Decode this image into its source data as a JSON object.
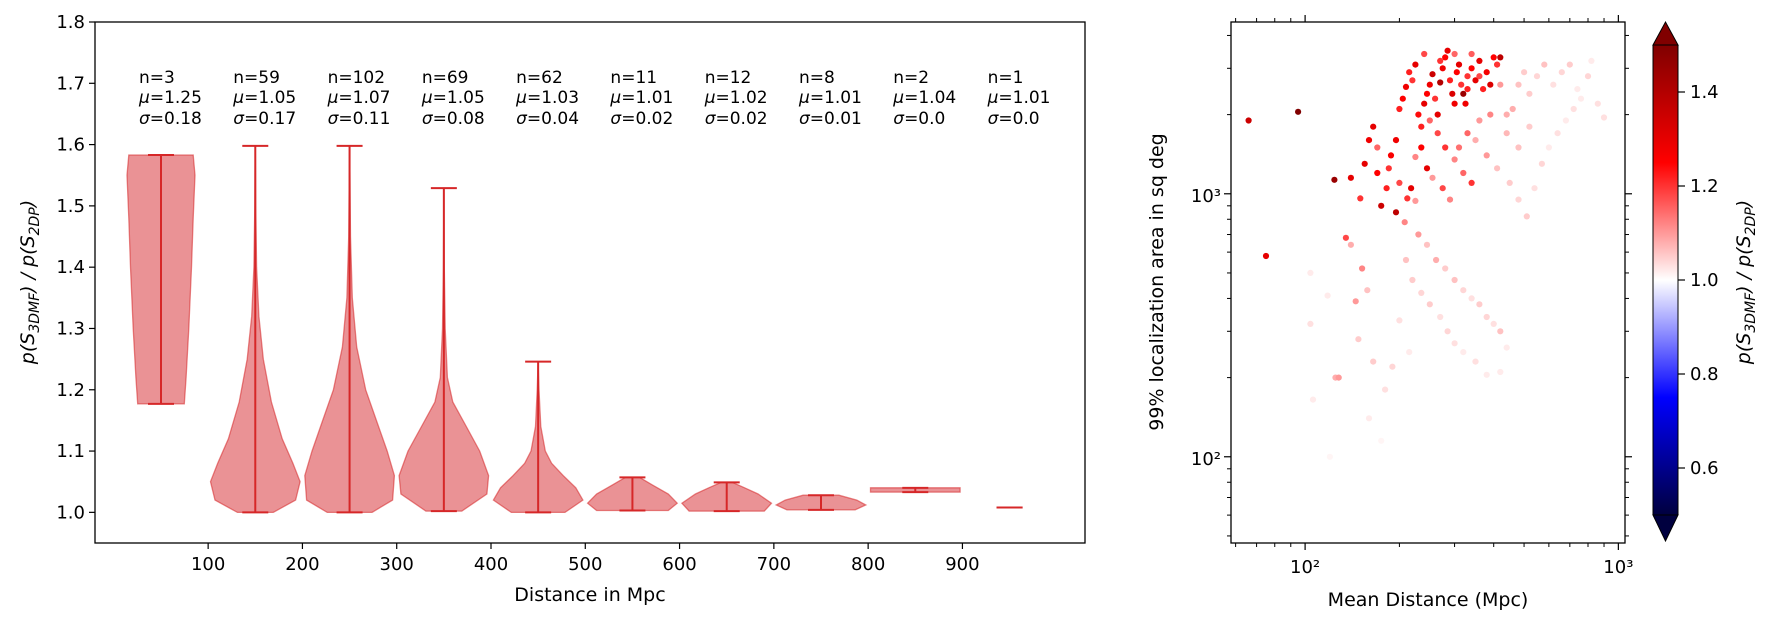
{
  "chart_data": [
    {
      "type": "violin",
      "xlabel": "Distance in Mpc",
      "ylabel_parts": [
        "p(S",
        "3DMF",
        ") / p(S",
        "2DP",
        ")"
      ],
      "xlim": [
        -20,
        1030
      ],
      "ylim": [
        0.95,
        1.8
      ],
      "xticks": [
        100,
        200,
        300,
        400,
        500,
        600,
        700,
        800,
        900
      ],
      "yticks": [
        1.0,
        1.1,
        1.2,
        1.3,
        1.4,
        1.5,
        1.6,
        1.7,
        1.8
      ],
      "color": "#d62728",
      "fill_color": "#e8868a",
      "annotations": [
        {
          "n": "n=3",
          "mu": "1.25",
          "sigma": "0.18"
        },
        {
          "n": "n=59",
          "mu": "1.05",
          "sigma": "0.17"
        },
        {
          "n": "n=102",
          "mu": "1.07",
          "sigma": "0.11"
        },
        {
          "n": "n=69",
          "mu": "1.05",
          "sigma": "0.08"
        },
        {
          "n": "n=62",
          "mu": "1.03",
          "sigma": "0.04"
        },
        {
          "n": "n=11",
          "mu": "1.01",
          "sigma": "0.02"
        },
        {
          "n": "n=12",
          "mu": "1.02",
          "sigma": "0.02"
        },
        {
          "n": "n=8",
          "mu": "1.01",
          "sigma": "0.01"
        },
        {
          "n": "n=2",
          "mu": "1.04",
          "sigma": "0.0"
        },
        {
          "n": "n=1",
          "mu": "1.01",
          "sigma": "0.0"
        }
      ],
      "violins": [
        {
          "x": 50,
          "min": 1.177,
          "max": 1.583,
          "profile": [
            [
              1.177,
              0.26
            ],
            [
              1.22,
              0.28
            ],
            [
              1.3,
              0.31
            ],
            [
              1.4,
              0.34
            ],
            [
              1.48,
              0.36
            ],
            [
              1.55,
              0.38
            ],
            [
              1.583,
              0.36
            ]
          ]
        },
        {
          "x": 150,
          "min": 1.0,
          "max": 1.598,
          "profile": [
            [
              1.0,
              0.2
            ],
            [
              1.02,
              0.45
            ],
            [
              1.05,
              0.5
            ],
            [
              1.08,
              0.42
            ],
            [
              1.12,
              0.3
            ],
            [
              1.18,
              0.18
            ],
            [
              1.25,
              0.09
            ],
            [
              1.32,
              0.04
            ],
            [
              1.4,
              0.015
            ],
            [
              1.5,
              0.005
            ],
            [
              1.598,
              0.0
            ]
          ]
        },
        {
          "x": 250,
          "min": 1.0,
          "max": 1.598,
          "profile": [
            [
              1.0,
              0.25
            ],
            [
              1.02,
              0.48
            ],
            [
              1.06,
              0.5
            ],
            [
              1.1,
              0.42
            ],
            [
              1.15,
              0.3
            ],
            [
              1.2,
              0.18
            ],
            [
              1.27,
              0.08
            ],
            [
              1.35,
              0.03
            ],
            [
              1.45,
              0.01
            ],
            [
              1.598,
              0.0
            ]
          ]
        },
        {
          "x": 350,
          "min": 1.002,
          "max": 1.529,
          "profile": [
            [
              1.002,
              0.2
            ],
            [
              1.03,
              0.48
            ],
            [
              1.06,
              0.5
            ],
            [
              1.1,
              0.4
            ],
            [
              1.14,
              0.25
            ],
            [
              1.18,
              0.1
            ],
            [
              1.22,
              0.04
            ],
            [
              1.3,
              0.015
            ],
            [
              1.4,
              0.005
            ],
            [
              1.529,
              0.0
            ]
          ]
        },
        {
          "x": 450,
          "min": 1.0,
          "max": 1.246,
          "profile": [
            [
              1.0,
              0.3
            ],
            [
              1.02,
              0.5
            ],
            [
              1.04,
              0.42
            ],
            [
              1.06,
              0.28
            ],
            [
              1.08,
              0.15
            ],
            [
              1.1,
              0.08
            ],
            [
              1.14,
              0.03
            ],
            [
              1.2,
              0.01
            ],
            [
              1.246,
              0.0
            ]
          ]
        },
        {
          "x": 550,
          "min": 1.003,
          "max": 1.057,
          "profile": [
            [
              1.003,
              0.4
            ],
            [
              1.015,
              0.5
            ],
            [
              1.03,
              0.4
            ],
            [
              1.045,
              0.22
            ],
            [
              1.057,
              0.08
            ]
          ]
        },
        {
          "x": 650,
          "min": 1.002,
          "max": 1.049,
          "profile": [
            [
              1.002,
              0.42
            ],
            [
              1.015,
              0.5
            ],
            [
              1.03,
              0.35
            ],
            [
              1.04,
              0.2
            ],
            [
              1.049,
              0.06
            ]
          ]
        },
        {
          "x": 750,
          "min": 1.004,
          "max": 1.028,
          "profile": [
            [
              1.004,
              0.38
            ],
            [
              1.012,
              0.5
            ],
            [
              1.02,
              0.4
            ],
            [
              1.028,
              0.2
            ]
          ]
        },
        {
          "x": 850,
          "min": 1.033,
          "max": 1.04,
          "profile": [
            [
              1.033,
              0.5
            ],
            [
              1.04,
              0.5
            ]
          ]
        },
        {
          "x": 950,
          "min": 1.008,
          "max": 1.008,
          "profile": []
        }
      ]
    },
    {
      "type": "scatter",
      "xlabel": "Mean Distance (Mpc)",
      "ylabel": "99% localization area in sq deg",
      "xscale": "log",
      "yscale": "log",
      "xlim": [
        58,
        1050
      ],
      "ylim": [
        47,
        4500
      ],
      "xticklabels": [
        "10²",
        "10³"
      ],
      "yticklabels": [
        "10²",
        "10³"
      ],
      "colorbar": {
        "label_parts": [
          "p(S",
          "3DMF",
          ") / p(S",
          "2DP",
          ")"
        ],
        "vmin": 0.5,
        "vmax": 1.5,
        "ticks": [
          "0.6",
          "0.8",
          "1.0",
          "1.2",
          "1.4"
        ],
        "cmap": [
          "#00003f",
          "#0000ff",
          "#ffffff",
          "#ff0000",
          "#800000"
        ]
      },
      "points": [
        [
          66,
          1900,
          1.35
        ],
        [
          95,
          2050,
          1.5
        ],
        [
          75,
          580,
          1.3
        ],
        [
          124,
          1130,
          1.45
        ],
        [
          104,
          500,
          1.02
        ],
        [
          104,
          320,
          1.03
        ],
        [
          118,
          410,
          1.02
        ],
        [
          125,
          200,
          1.08
        ],
        [
          128,
          200,
          1.1
        ],
        [
          106,
          165,
          1.02
        ],
        [
          120,
          100,
          1.01
        ],
        [
          135,
          680,
          1.18
        ],
        [
          140,
          640,
          1.08
        ],
        [
          145,
          390,
          1.1
        ],
        [
          148,
          280,
          1.05
        ],
        [
          152,
          520,
          1.12
        ],
        [
          158,
          430,
          1.06
        ],
        [
          140,
          1150,
          1.3
        ],
        [
          150,
          960,
          1.2
        ],
        [
          155,
          1300,
          1.3
        ],
        [
          160,
          1600,
          1.28
        ],
        [
          165,
          1800,
          1.3
        ],
        [
          170,
          1200,
          1.25
        ],
        [
          175,
          900,
          1.35
        ],
        [
          182,
          1050,
          1.22
        ],
        [
          188,
          1400,
          1.26
        ],
        [
          195,
          1600,
          1.28
        ],
        [
          170,
          1500,
          1.15
        ],
        [
          185,
          1250,
          1.2
        ],
        [
          200,
          1100,
          1.18
        ],
        [
          195,
          850,
          1.38
        ],
        [
          208,
          780,
          1.12
        ],
        [
          212,
          960,
          1.2
        ],
        [
          218,
          1050,
          1.3
        ],
        [
          225,
          940,
          1.1
        ],
        [
          200,
          2100,
          1.22
        ],
        [
          205,
          2300,
          1.25
        ],
        [
          210,
          2550,
          1.28
        ],
        [
          215,
          2900,
          1.22
        ],
        [
          220,
          2700,
          1.2
        ],
        [
          225,
          3100,
          1.3
        ],
        [
          230,
          2000,
          1.24
        ],
        [
          235,
          1800,
          1.22
        ],
        [
          240,
          2200,
          1.3
        ],
        [
          245,
          2400,
          1.25
        ],
        [
          250,
          2600,
          1.28
        ],
        [
          255,
          2850,
          1.35
        ],
        [
          260,
          2300,
          1.2
        ],
        [
          265,
          2000,
          1.3
        ],
        [
          270,
          2650,
          1.4
        ],
        [
          275,
          3000,
          1.28
        ],
        [
          280,
          3300,
          1.25
        ],
        [
          285,
          3500,
          1.3
        ],
        [
          290,
          2700,
          1.22
        ],
        [
          295,
          2400,
          1.32
        ],
        [
          300,
          2200,
          1.28
        ],
        [
          305,
          2900,
          1.25
        ],
        [
          310,
          3100,
          1.3
        ],
        [
          315,
          2600,
          1.2
        ],
        [
          320,
          2400,
          1.45
        ],
        [
          325,
          2200,
          1.28
        ],
        [
          330,
          2800,
          1.2
        ],
        [
          340,
          3000,
          1.25
        ],
        [
          350,
          2700,
          1.3
        ],
        [
          360,
          3200,
          1.3
        ],
        [
          370,
          2500,
          1.22
        ],
        [
          380,
          2900,
          1.27
        ],
        [
          390,
          2600,
          1.32
        ],
        [
          400,
          3300,
          1.25
        ],
        [
          410,
          3100,
          1.2
        ],
        [
          420,
          3300,
          1.38
        ],
        [
          250,
          1900,
          1.15
        ],
        [
          265,
          1700,
          1.18
        ],
        [
          280,
          1500,
          1.2
        ],
        [
          300,
          1350,
          1.12
        ],
        [
          320,
          1200,
          1.15
        ],
        [
          340,
          1100,
          1.2
        ],
        [
          235,
          1500,
          1.25
        ],
        [
          245,
          1250,
          1.3
        ],
        [
          225,
          1380,
          1.12
        ],
        [
          255,
          1150,
          1.1
        ],
        [
          275,
          1050,
          1.18
        ],
        [
          290,
          950,
          1.12
        ],
        [
          230,
          700,
          1.1
        ],
        [
          245,
          640,
          1.06
        ],
        [
          262,
          560,
          1.08
        ],
        [
          280,
          520,
          1.05
        ],
        [
          300,
          470,
          1.06
        ],
        [
          320,
          430,
          1.04
        ],
        [
          340,
          400,
          1.03
        ],
        [
          360,
          380,
          1.05
        ],
        [
          380,
          340,
          1.04
        ],
        [
          400,
          320,
          1.03
        ],
        [
          420,
          300,
          1.06
        ],
        [
          440,
          260,
          1.02
        ],
        [
          210,
          560,
          1.06
        ],
        [
          220,
          470,
          1.05
        ],
        [
          235,
          420,
          1.04
        ],
        [
          250,
          380,
          1.05
        ],
        [
          270,
          340,
          1.03
        ],
        [
          285,
          300,
          1.04
        ],
        [
          300,
          270,
          1.03
        ],
        [
          320,
          250,
          1.02
        ],
        [
          350,
          230,
          1.03
        ],
        [
          380,
          205,
          1.02
        ],
        [
          420,
          210,
          1.02
        ],
        [
          200,
          330,
          1.03
        ],
        [
          215,
          250,
          1.02
        ],
        [
          190,
          220,
          1.04
        ],
        [
          180,
          180,
          1.03
        ],
        [
          165,
          230,
          1.05
        ],
        [
          160,
          140,
          1.02
        ],
        [
          175,
          115,
          1.01
        ],
        [
          350,
          1600,
          1.08
        ],
        [
          380,
          1400,
          1.1
        ],
        [
          410,
          1250,
          1.06
        ],
        [
          440,
          1700,
          1.07
        ],
        [
          460,
          2100,
          1.08
        ],
        [
          480,
          2600,
          1.06
        ],
        [
          500,
          2900,
          1.05
        ],
        [
          520,
          2400,
          1.05
        ],
        [
          550,
          2800,
          1.04
        ],
        [
          580,
          3100,
          1.06
        ],
        [
          620,
          2600,
          1.03
        ],
        [
          660,
          2900,
          1.04
        ],
        [
          700,
          3100,
          1.05
        ],
        [
          740,
          2500,
          1.02
        ],
        [
          800,
          2800,
          1.04
        ],
        [
          860,
          2200,
          1.03
        ],
        [
          900,
          1950,
          1.03
        ],
        [
          820,
          3200,
          1.02
        ],
        [
          450,
          1100,
          1.05
        ],
        [
          480,
          950,
          1.04
        ],
        [
          510,
          820,
          1.05
        ],
        [
          540,
          1050,
          1.03
        ],
        [
          570,
          1300,
          1.04
        ],
        [
          600,
          1500,
          1.02
        ],
        [
          640,
          1700,
          1.03
        ],
        [
          680,
          1900,
          1.02
        ],
        [
          720,
          2100,
          1.03
        ],
        [
          760,
          2300,
          1.02
        ],
        [
          480,
          1500,
          1.06
        ],
        [
          520,
          1800,
          1.05
        ],
        [
          440,
          2000,
          1.08
        ],
        [
          420,
          2600,
          1.1
        ],
        [
          390,
          2000,
          1.12
        ],
        [
          360,
          1900,
          1.1
        ],
        [
          330,
          1700,
          1.15
        ],
        [
          310,
          1500,
          1.14
        ],
        [
          360,
          2800,
          1.18
        ],
        [
          330,
          2500,
          1.22
        ],
        [
          300,
          3400,
          1.15
        ],
        [
          270,
          3200,
          1.2
        ],
        [
          240,
          3400,
          1.18
        ],
        [
          340,
          3400,
          1.16
        ]
      ]
    }
  ]
}
